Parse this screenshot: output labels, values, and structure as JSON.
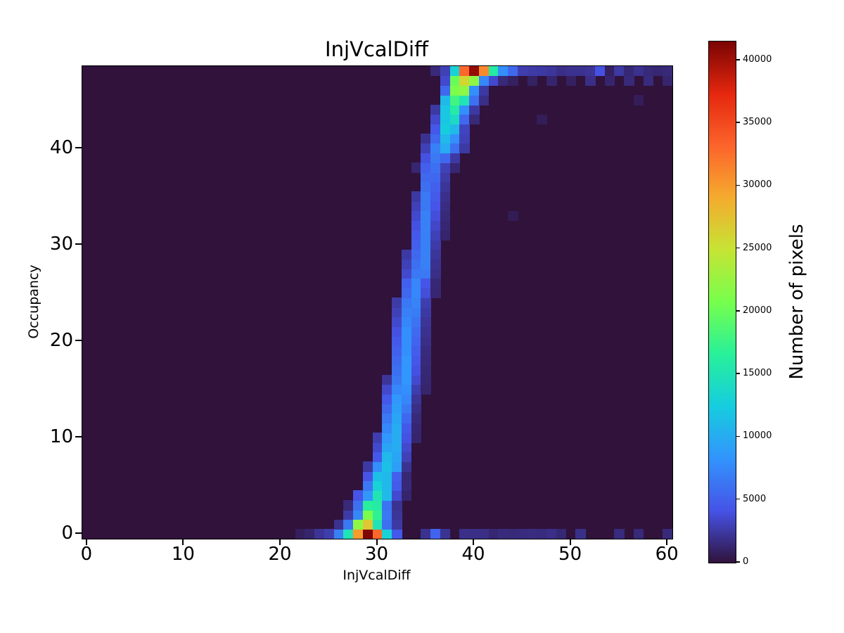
{
  "title": "InjVcalDiff",
  "chart_data": {
    "type": "heatmap",
    "title": "InjVcalDiff",
    "xlabel": "InjVcalDiff",
    "ylabel": "Occupancy",
    "colorbar_label": "Number of pixels",
    "colormap": "turbo",
    "background_color": "#30123b",
    "xlim": [
      -0.5,
      60.5
    ],
    "ylim": [
      -0.5,
      48.5
    ],
    "x_ticks": [
      0,
      10,
      20,
      30,
      40,
      50,
      60
    ],
    "y_ticks": [
      0,
      10,
      20,
      30,
      40
    ],
    "colorbar_ticks": [
      0,
      5000,
      10000,
      15000,
      20000,
      25000,
      30000,
      35000,
      40000
    ],
    "vmin": 0,
    "vmax": 41500,
    "grid_cols": 61,
    "grid_rows": 49,
    "cells": [
      [
        22,
        0,
        800
      ],
      [
        23,
        0,
        1200
      ],
      [
        24,
        0,
        2200
      ],
      [
        25,
        0,
        2800
      ],
      [
        26,
        0,
        7000
      ],
      [
        27,
        0,
        15000
      ],
      [
        28,
        0,
        30000
      ],
      [
        29,
        0,
        41300
      ],
      [
        30,
        0,
        33000
      ],
      [
        31,
        0,
        13000
      ],
      [
        32,
        0,
        4500
      ],
      [
        35,
        0,
        2000
      ],
      [
        36,
        0,
        5200
      ],
      [
        37,
        0,
        2100
      ],
      [
        39,
        0,
        1900
      ],
      [
        40,
        0,
        1800
      ],
      [
        41,
        0,
        1800
      ],
      [
        42,
        0,
        1300
      ],
      [
        43,
        0,
        1600
      ],
      [
        44,
        0,
        1500
      ],
      [
        45,
        0,
        1600
      ],
      [
        46,
        0,
        1700
      ],
      [
        47,
        0,
        1600
      ],
      [
        48,
        0,
        1800
      ],
      [
        49,
        0,
        1400
      ],
      [
        51,
        0,
        1900
      ],
      [
        55,
        0,
        1600
      ],
      [
        57,
        0,
        1500
      ],
      [
        60,
        0,
        1500
      ],
      [
        26,
        1,
        2000
      ],
      [
        27,
        1,
        6500
      ],
      [
        28,
        1,
        22000
      ],
      [
        29,
        1,
        27000
      ],
      [
        30,
        1,
        15000
      ],
      [
        31,
        1,
        6000
      ],
      [
        32,
        1,
        2500
      ],
      [
        27,
        2,
        2600
      ],
      [
        28,
        2,
        7500
      ],
      [
        29,
        2,
        21000
      ],
      [
        30,
        2,
        17000
      ],
      [
        31,
        2,
        6500
      ],
      [
        32,
        2,
        2300
      ],
      [
        27,
        3,
        1500
      ],
      [
        28,
        3,
        6000
      ],
      [
        29,
        3,
        16500
      ],
      [
        30,
        3,
        16000
      ],
      [
        31,
        3,
        6200
      ],
      [
        32,
        3,
        2100
      ],
      [
        28,
        4,
        4200
      ],
      [
        29,
        4,
        8500
      ],
      [
        30,
        4,
        15000
      ],
      [
        31,
        4,
        11000
      ],
      [
        32,
        4,
        3600
      ],
      [
        33,
        4,
        1200
      ],
      [
        29,
        5,
        6500
      ],
      [
        30,
        5,
        13000
      ],
      [
        31,
        5,
        11000
      ],
      [
        32,
        5,
        4600
      ],
      [
        33,
        5,
        1500
      ],
      [
        29,
        6,
        4200
      ],
      [
        30,
        6,
        11500
      ],
      [
        31,
        6,
        11000
      ],
      [
        32,
        6,
        5000
      ],
      [
        33,
        6,
        1400
      ],
      [
        29,
        7,
        2500
      ],
      [
        30,
        7,
        8000
      ],
      [
        31,
        7,
        11500
      ],
      [
        32,
        7,
        9000
      ],
      [
        33,
        7,
        2100
      ],
      [
        30,
        8,
        4500
      ],
      [
        31,
        8,
        11000
      ],
      [
        32,
        8,
        9500
      ],
      [
        33,
        8,
        3000
      ],
      [
        30,
        9,
        3500
      ],
      [
        31,
        9,
        9500
      ],
      [
        32,
        9,
        10000
      ],
      [
        33,
        9,
        3500
      ],
      [
        30,
        10,
        2800
      ],
      [
        31,
        10,
        8500
      ],
      [
        32,
        10,
        10000
      ],
      [
        33,
        10,
        4000
      ],
      [
        34,
        10,
        1200
      ],
      [
        31,
        11,
        7500
      ],
      [
        32,
        11,
        10000
      ],
      [
        33,
        11,
        4500
      ],
      [
        34,
        11,
        1300
      ],
      [
        31,
        12,
        6500
      ],
      [
        32,
        12,
        9500
      ],
      [
        33,
        12,
        5500
      ],
      [
        34,
        12,
        1500
      ],
      [
        31,
        13,
        5500
      ],
      [
        32,
        13,
        9000
      ],
      [
        33,
        13,
        6500
      ],
      [
        34,
        13,
        1800
      ],
      [
        31,
        14,
        4500
      ],
      [
        32,
        14,
        8500
      ],
      [
        33,
        14,
        7500
      ],
      [
        34,
        14,
        2200
      ],
      [
        31,
        15,
        3500
      ],
      [
        32,
        15,
        7500
      ],
      [
        33,
        15,
        8000
      ],
      [
        34,
        15,
        2800
      ],
      [
        35,
        15,
        1200
      ],
      [
        31,
        16,
        2200
      ],
      [
        32,
        16,
        6500
      ],
      [
        33,
        16,
        8500
      ],
      [
        34,
        16,
        3600
      ],
      [
        35,
        16,
        1300
      ],
      [
        32,
        17,
        6000
      ],
      [
        33,
        17,
        8500
      ],
      [
        34,
        17,
        4000
      ],
      [
        35,
        17,
        1400
      ],
      [
        32,
        18,
        5500
      ],
      [
        33,
        18,
        8500
      ],
      [
        34,
        18,
        4400
      ],
      [
        35,
        18,
        1500
      ],
      [
        32,
        19,
        5000
      ],
      [
        33,
        19,
        8000
      ],
      [
        34,
        19,
        4800
      ],
      [
        35,
        19,
        1600
      ],
      [
        32,
        20,
        4500
      ],
      [
        33,
        20,
        8000
      ],
      [
        34,
        20,
        5200
      ],
      [
        35,
        20,
        1800
      ],
      [
        32,
        21,
        4000
      ],
      [
        33,
        21,
        8000
      ],
      [
        34,
        21,
        5600
      ],
      [
        35,
        21,
        2000
      ],
      [
        32,
        22,
        3500
      ],
      [
        33,
        22,
        7500
      ],
      [
        34,
        22,
        6200
      ],
      [
        35,
        22,
        2200
      ],
      [
        32,
        23,
        3000
      ],
      [
        33,
        23,
        7000
      ],
      [
        34,
        23,
        6800
      ],
      [
        35,
        23,
        2500
      ],
      [
        32,
        24,
        2600
      ],
      [
        33,
        24,
        6500
      ],
      [
        34,
        24,
        7200
      ],
      [
        35,
        24,
        2800
      ],
      [
        33,
        25,
        5500
      ],
      [
        34,
        25,
        7500
      ],
      [
        35,
        25,
        3800
      ],
      [
        36,
        25,
        1300
      ],
      [
        33,
        26,
        5000
      ],
      [
        34,
        26,
        7500
      ],
      [
        35,
        26,
        4200
      ],
      [
        36,
        26,
        1400
      ],
      [
        33,
        27,
        3500
      ],
      [
        34,
        27,
        6500
      ],
      [
        35,
        27,
        6500
      ],
      [
        36,
        27,
        1800
      ],
      [
        33,
        28,
        3000
      ],
      [
        34,
        28,
        6000
      ],
      [
        35,
        28,
        7000
      ],
      [
        36,
        28,
        2000
      ],
      [
        33,
        29,
        2500
      ],
      [
        34,
        29,
        5500
      ],
      [
        35,
        29,
        7000
      ],
      [
        36,
        29,
        2300
      ],
      [
        34,
        30,
        5000
      ],
      [
        35,
        30,
        7000
      ],
      [
        36,
        30,
        2600
      ],
      [
        34,
        31,
        4500
      ],
      [
        35,
        31,
        7000
      ],
      [
        36,
        31,
        3000
      ],
      [
        37,
        31,
        1200
      ],
      [
        34,
        32,
        4000
      ],
      [
        35,
        32,
        7000
      ],
      [
        36,
        32,
        3400
      ],
      [
        37,
        32,
        1300
      ],
      [
        34,
        33,
        3500
      ],
      [
        35,
        33,
        7000
      ],
      [
        36,
        33,
        3800
      ],
      [
        37,
        33,
        1500
      ],
      [
        44,
        33,
        600
      ],
      [
        34,
        34,
        3000
      ],
      [
        35,
        34,
        6500
      ],
      [
        36,
        34,
        4200
      ],
      [
        37,
        34,
        1700
      ],
      [
        34,
        35,
        2500
      ],
      [
        35,
        35,
        6500
      ],
      [
        36,
        35,
        4600
      ],
      [
        37,
        35,
        1900
      ],
      [
        35,
        36,
        6000
      ],
      [
        36,
        36,
        5000
      ],
      [
        37,
        36,
        2200
      ],
      [
        35,
        37,
        5500
      ],
      [
        36,
        37,
        5500
      ],
      [
        37,
        37,
        2600
      ],
      [
        34,
        38,
        1300
      ],
      [
        35,
        38,
        5000
      ],
      [
        36,
        38,
        6000
      ],
      [
        37,
        38,
        3000
      ],
      [
        38,
        38,
        1300
      ],
      [
        35,
        39,
        4000
      ],
      [
        36,
        39,
        6500
      ],
      [
        37,
        39,
        5500
      ],
      [
        38,
        39,
        2500
      ],
      [
        35,
        40,
        3000
      ],
      [
        36,
        40,
        7000
      ],
      [
        37,
        40,
        10000
      ],
      [
        38,
        40,
        6000
      ],
      [
        39,
        40,
        2500
      ],
      [
        35,
        41,
        2000
      ],
      [
        36,
        41,
        5500
      ],
      [
        37,
        41,
        11000
      ],
      [
        38,
        41,
        8000
      ],
      [
        39,
        41,
        3000
      ],
      [
        36,
        42,
        4500
      ],
      [
        37,
        42,
        12500
      ],
      [
        38,
        42,
        11000
      ],
      [
        39,
        42,
        3200
      ],
      [
        36,
        43,
        3500
      ],
      [
        37,
        43,
        12000
      ],
      [
        38,
        43,
        14000
      ],
      [
        39,
        43,
        5500
      ],
      [
        40,
        43,
        1500
      ],
      [
        47,
        43,
        700
      ],
      [
        36,
        44,
        2500
      ],
      [
        37,
        44,
        12000
      ],
      [
        38,
        44,
        16000
      ],
      [
        39,
        44,
        8000
      ],
      [
        40,
        44,
        2500
      ],
      [
        37,
        45,
        11000
      ],
      [
        38,
        45,
        18000
      ],
      [
        39,
        45,
        15000
      ],
      [
        40,
        45,
        6000
      ],
      [
        41,
        45,
        1800
      ],
      [
        57,
        45,
        700
      ],
      [
        37,
        46,
        5500
      ],
      [
        38,
        46,
        21000
      ],
      [
        39,
        46,
        22000
      ],
      [
        40,
        46,
        8000
      ],
      [
        41,
        46,
        2500
      ],
      [
        37,
        47,
        3500
      ],
      [
        38,
        47,
        20000
      ],
      [
        39,
        47,
        26000
      ],
      [
        40,
        47,
        22000
      ],
      [
        41,
        47,
        7500
      ],
      [
        42,
        47,
        3500
      ],
      [
        43,
        47,
        1500
      ],
      [
        44,
        47,
        900
      ],
      [
        46,
        47,
        1000
      ],
      [
        48,
        47,
        1200
      ],
      [
        50,
        47,
        900
      ],
      [
        52,
        47,
        1800
      ],
      [
        54,
        47,
        1200
      ],
      [
        56,
        47,
        1500
      ],
      [
        58,
        47,
        1600
      ],
      [
        60,
        47,
        1200
      ],
      [
        36,
        48,
        1500
      ],
      [
        37,
        48,
        3000
      ],
      [
        38,
        48,
        13000
      ],
      [
        39,
        48,
        33000
      ],
      [
        40,
        48,
        40500
      ],
      [
        41,
        48,
        31000
      ],
      [
        42,
        48,
        16000
      ],
      [
        43,
        48,
        8000
      ],
      [
        44,
        48,
        5500
      ],
      [
        45,
        48,
        2800
      ],
      [
        46,
        48,
        2600
      ],
      [
        47,
        48,
        2500
      ],
      [
        48,
        48,
        2300
      ],
      [
        49,
        48,
        1800
      ],
      [
        50,
        48,
        2000
      ],
      [
        51,
        48,
        2000
      ],
      [
        52,
        48,
        2200
      ],
      [
        53,
        48,
        4000
      ],
      [
        54,
        48,
        900
      ],
      [
        55,
        48,
        2500
      ],
      [
        56,
        48,
        1400
      ],
      [
        57,
        48,
        2000
      ],
      [
        58,
        48,
        1500
      ],
      [
        59,
        48,
        1300
      ],
      [
        60,
        48,
        1500
      ]
    ]
  }
}
